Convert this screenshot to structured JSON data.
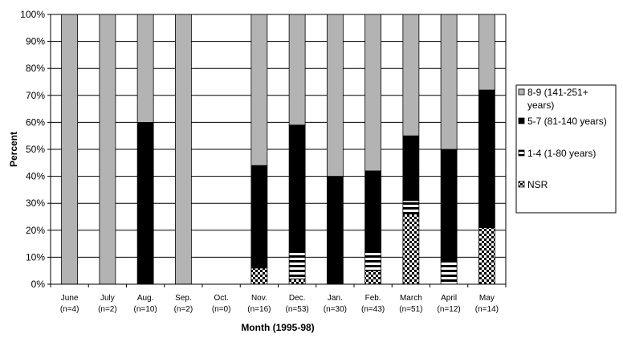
{
  "chart_data": {
    "type": "bar",
    "stacked": true,
    "percent": true,
    "xlabel": "Month (1995-98)",
    "ylabel": "Percent",
    "ylim": [
      0,
      100
    ],
    "yticks": [
      "0%",
      "10%",
      "20%",
      "30%",
      "40%",
      "50%",
      "60%",
      "70%",
      "80%",
      "90%",
      "100%"
    ],
    "categories": [
      "June",
      "July",
      "Aug.",
      "Sep.",
      "Oct.",
      "Nov.",
      "Dec.",
      "Jan.",
      "Feb.",
      "March",
      "April",
      "May"
    ],
    "category_counts": [
      "(n=4)",
      "(n=2)",
      "(n=10)",
      "(n=2)",
      "(n=0)",
      "(n=16)",
      "(n=53)",
      "(n=30)",
      "(n=43)",
      "(n=51)",
      "(n=12)",
      "(n=14)"
    ],
    "series": [
      {
        "name": "NSR",
        "pattern": "checker",
        "values": [
          0,
          0,
          0,
          0,
          0,
          6,
          2,
          0,
          5,
          26,
          0,
          21
        ]
      },
      {
        "name": "1-4 (1-80 years)",
        "pattern": "stripes",
        "values": [
          0,
          0,
          0,
          0,
          0,
          0,
          10,
          0,
          7,
          5,
          9,
          0
        ]
      },
      {
        "name": "5-7 (81-140 years)",
        "color": "#000000",
        "values": [
          0,
          0,
          60,
          0,
          0,
          38,
          47,
          40,
          30,
          24,
          41,
          51
        ]
      },
      {
        "name": "8-9 (141-251+ years)",
        "color": "#b3b3b3",
        "values": [
          100,
          100,
          40,
          100,
          0,
          56,
          41,
          60,
          58,
          45,
          50,
          28
        ]
      }
    ],
    "legend": {
      "position": "right",
      "items": [
        {
          "series": "8-9 (141-251+ years)",
          "lines": [
            "8-9 (141-251+",
            "years)"
          ]
        },
        {
          "series": "5-7 (81-140 years)",
          "lines": [
            "5-7 (81-140 years)"
          ]
        },
        {
          "series": "1-4 (1-80 years)",
          "lines": [
            "1-4 (1-80 years)"
          ]
        },
        {
          "series": "NSR",
          "lines": [
            "NSR"
          ]
        }
      ]
    },
    "grid": true
  }
}
